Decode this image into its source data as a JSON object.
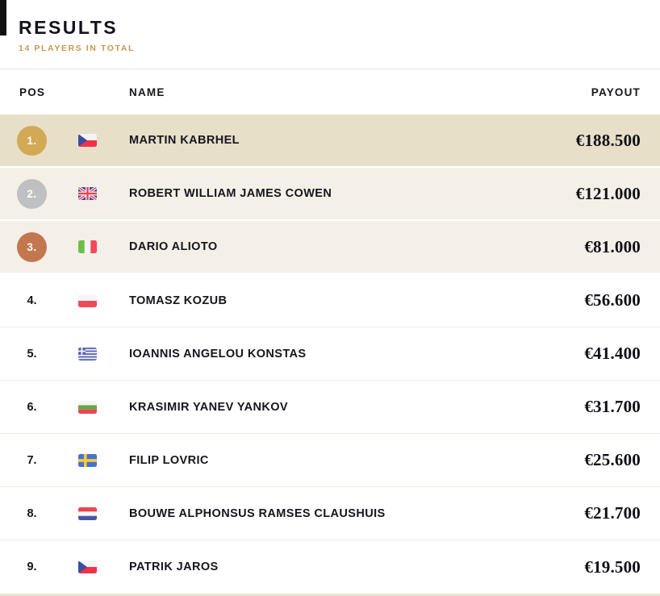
{
  "header": {
    "title": "RESULTS",
    "subtitle": "14 PLAYERS IN TOTAL"
  },
  "table": {
    "columns": {
      "pos": "POS",
      "name": "NAME",
      "payout": "PAYOUT"
    },
    "rows": [
      {
        "pos": "1.",
        "rank": 1,
        "country": "cz",
        "name": "MARTIN KABRHEL",
        "payout": "€188.500"
      },
      {
        "pos": "2.",
        "rank": 2,
        "country": "gb",
        "name": "ROBERT WILLIAM JAMES COWEN",
        "payout": "€121.000"
      },
      {
        "pos": "3.",
        "rank": 3,
        "country": "it",
        "name": "DARIO ALIOTO",
        "payout": "€81.000"
      },
      {
        "pos": "4.",
        "rank": 4,
        "country": "pl",
        "name": "TOMASZ KOZUB",
        "payout": "€56.600"
      },
      {
        "pos": "5.",
        "rank": 5,
        "country": "gr",
        "name": "IOANNIS ANGELOU KONSTAS",
        "payout": "€41.400"
      },
      {
        "pos": "6.",
        "rank": 6,
        "country": "bg",
        "name": "KRASIMIR YANEV YANKOV",
        "payout": "€31.700"
      },
      {
        "pos": "7.",
        "rank": 7,
        "country": "se",
        "name": "FILIP LOVRIC",
        "payout": "€25.600"
      },
      {
        "pos": "8.",
        "rank": 8,
        "country": "nl",
        "name": "BOUWE ALPHONSUS RAMSES CLAUSHUIS",
        "payout": "€21.700"
      },
      {
        "pos": "9.",
        "rank": 9,
        "country": "cz",
        "name": "PATRIK JAROS",
        "payout": "€19.500"
      }
    ]
  },
  "colors": {
    "accent_gold": "#c49a4e",
    "badge_gold": "#d2a954",
    "badge_silver": "#bec0c2",
    "badge_bronze": "#c3774e",
    "row1_bg": "#e8dfc9",
    "row23_bg": "#f5f0e7",
    "text_dark": "#15151e"
  }
}
